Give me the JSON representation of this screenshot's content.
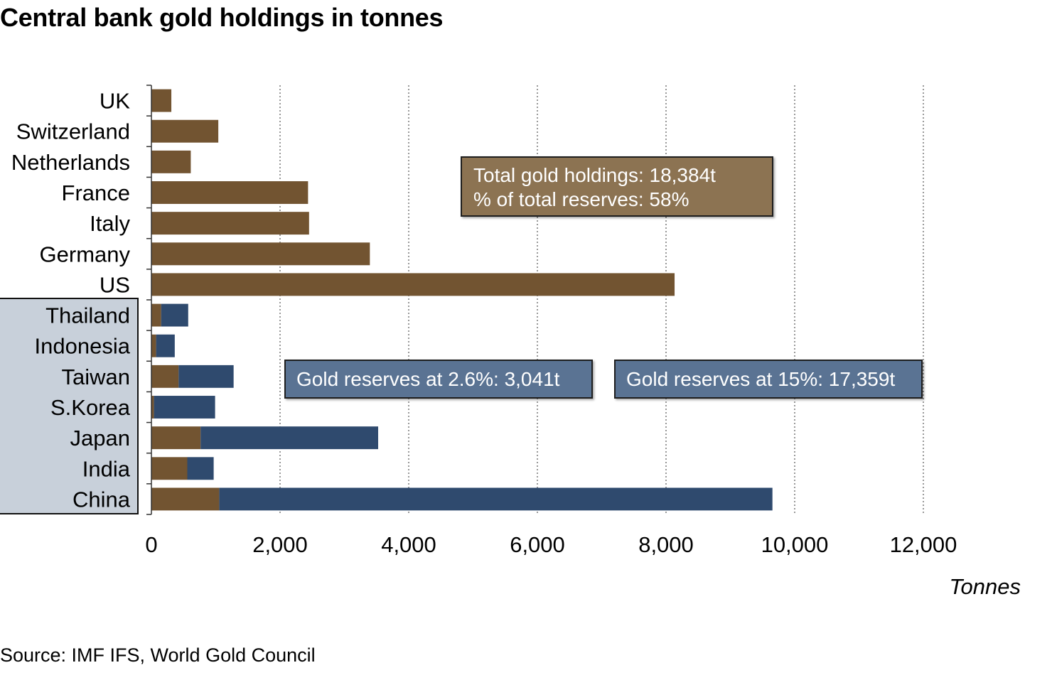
{
  "title": "Central bank gold holdings in tonnes",
  "source": "Source: IMF IFS, World Gold Council",
  "callouts": {
    "total_line1": "Total gold holdings:  18,384t",
    "total_line2": "% of total reserves:  58%",
    "low": "Gold reserves at  2.6%: 3,041t",
    "high": "Gold reserves at 15%: 17,359t"
  },
  "colors": {
    "gold": "#725431",
    "blue": "#2f4a6e",
    "highlight_panel": "#c8d0da",
    "gridline": "#555555"
  },
  "chart_data": {
    "type": "bar",
    "orientation": "horizontal",
    "stacked": true,
    "title": "Central bank gold holdings in tonnes",
    "xlabel": "Tonnes",
    "ylabel": "",
    "xlim": [
      0,
      12000
    ],
    "xticks": [
      0,
      2000,
      4000,
      6000,
      8000,
      10000,
      12000
    ],
    "xtick_labels": [
      "0",
      "2,000",
      "4,000",
      "6,000",
      "8,000",
      "10,000",
      "12,000"
    ],
    "grid": "vertical dotted",
    "categories": [
      "UK",
      "Switzerland",
      "Netherlands",
      "France",
      "Italy",
      "Germany",
      "US",
      "Thailand",
      "Indonesia",
      "Taiwan",
      "S.Korea",
      "Japan",
      "India",
      "China"
    ],
    "highlighted_categories": [
      "Thailand",
      "Indonesia",
      "Taiwan",
      "S.Korea",
      "Japan",
      "India",
      "China"
    ],
    "series": [
      {
        "color": "#725431",
        "values": [
          310,
          1040,
          612,
          2435,
          2451,
          3396,
          8133,
          152,
          73,
          423,
          40,
          765,
          558,
          1054
        ]
      },
      {
        "color": "#2f4a6e",
        "values": [
          0,
          0,
          0,
          0,
          0,
          0,
          0,
          420,
          290,
          855,
          950,
          2760,
          410,
          8600
        ]
      }
    ]
  }
}
